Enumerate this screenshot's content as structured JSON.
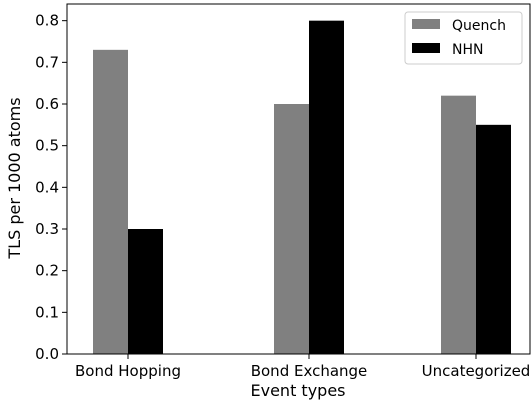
{
  "chart_data": {
    "type": "bar",
    "categories": [
      "Bond Hopping",
      "Bond Exchange",
      "Uncategorized"
    ],
    "series": [
      {
        "name": "Quench",
        "values": [
          0.73,
          0.6,
          0.62
        ],
        "color": "#808080"
      },
      {
        "name": "NHN",
        "values": [
          0.3,
          0.8,
          0.55
        ],
        "color": "#000000"
      }
    ],
    "xlabel": "Event types",
    "ylabel": "TLS per 1000 atoms",
    "ylim": [
      0,
      0.84
    ],
    "yticks": [
      "0.0",
      "0.1",
      "0.2",
      "0.3",
      "0.4",
      "0.5",
      "0.6",
      "0.7",
      "0.8"
    ],
    "grid": false,
    "legend": "top-right"
  }
}
